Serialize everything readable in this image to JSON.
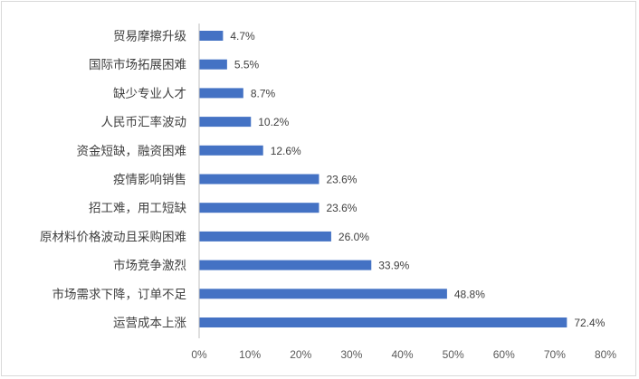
{
  "chart_data": {
    "type": "bar",
    "orientation": "horizontal",
    "categories": [
      "贸易摩擦升级",
      "国际市场拓展困难",
      "缺少专业人才",
      "人民币汇率波动",
      "资金短缺，融资困难",
      "疫情影响销售",
      "招工难，用工短缺",
      "原材料价格波动且采购困难",
      "市场竞争激烈",
      "市场需求下降，订单不足",
      "运营成本上涨"
    ],
    "values": [
      4.7,
      5.5,
      8.7,
      10.2,
      12.6,
      23.6,
      23.6,
      26.0,
      33.9,
      48.8,
      72.4
    ],
    "value_labels": [
      "4.7%",
      "5.5%",
      "8.7%",
      "10.2%",
      "12.6%",
      "23.6%",
      "23.6%",
      "26.0%",
      "33.9%",
      "48.8%",
      "72.4%"
    ],
    "x_ticks": [
      "0%",
      "10%",
      "20%",
      "30%",
      "40%",
      "50%",
      "60%",
      "70%",
      "80%"
    ],
    "xlim": [
      0,
      80
    ],
    "title": "",
    "xlabel": "",
    "ylabel": "",
    "grid": false,
    "bar_color": "#4472c4"
  }
}
